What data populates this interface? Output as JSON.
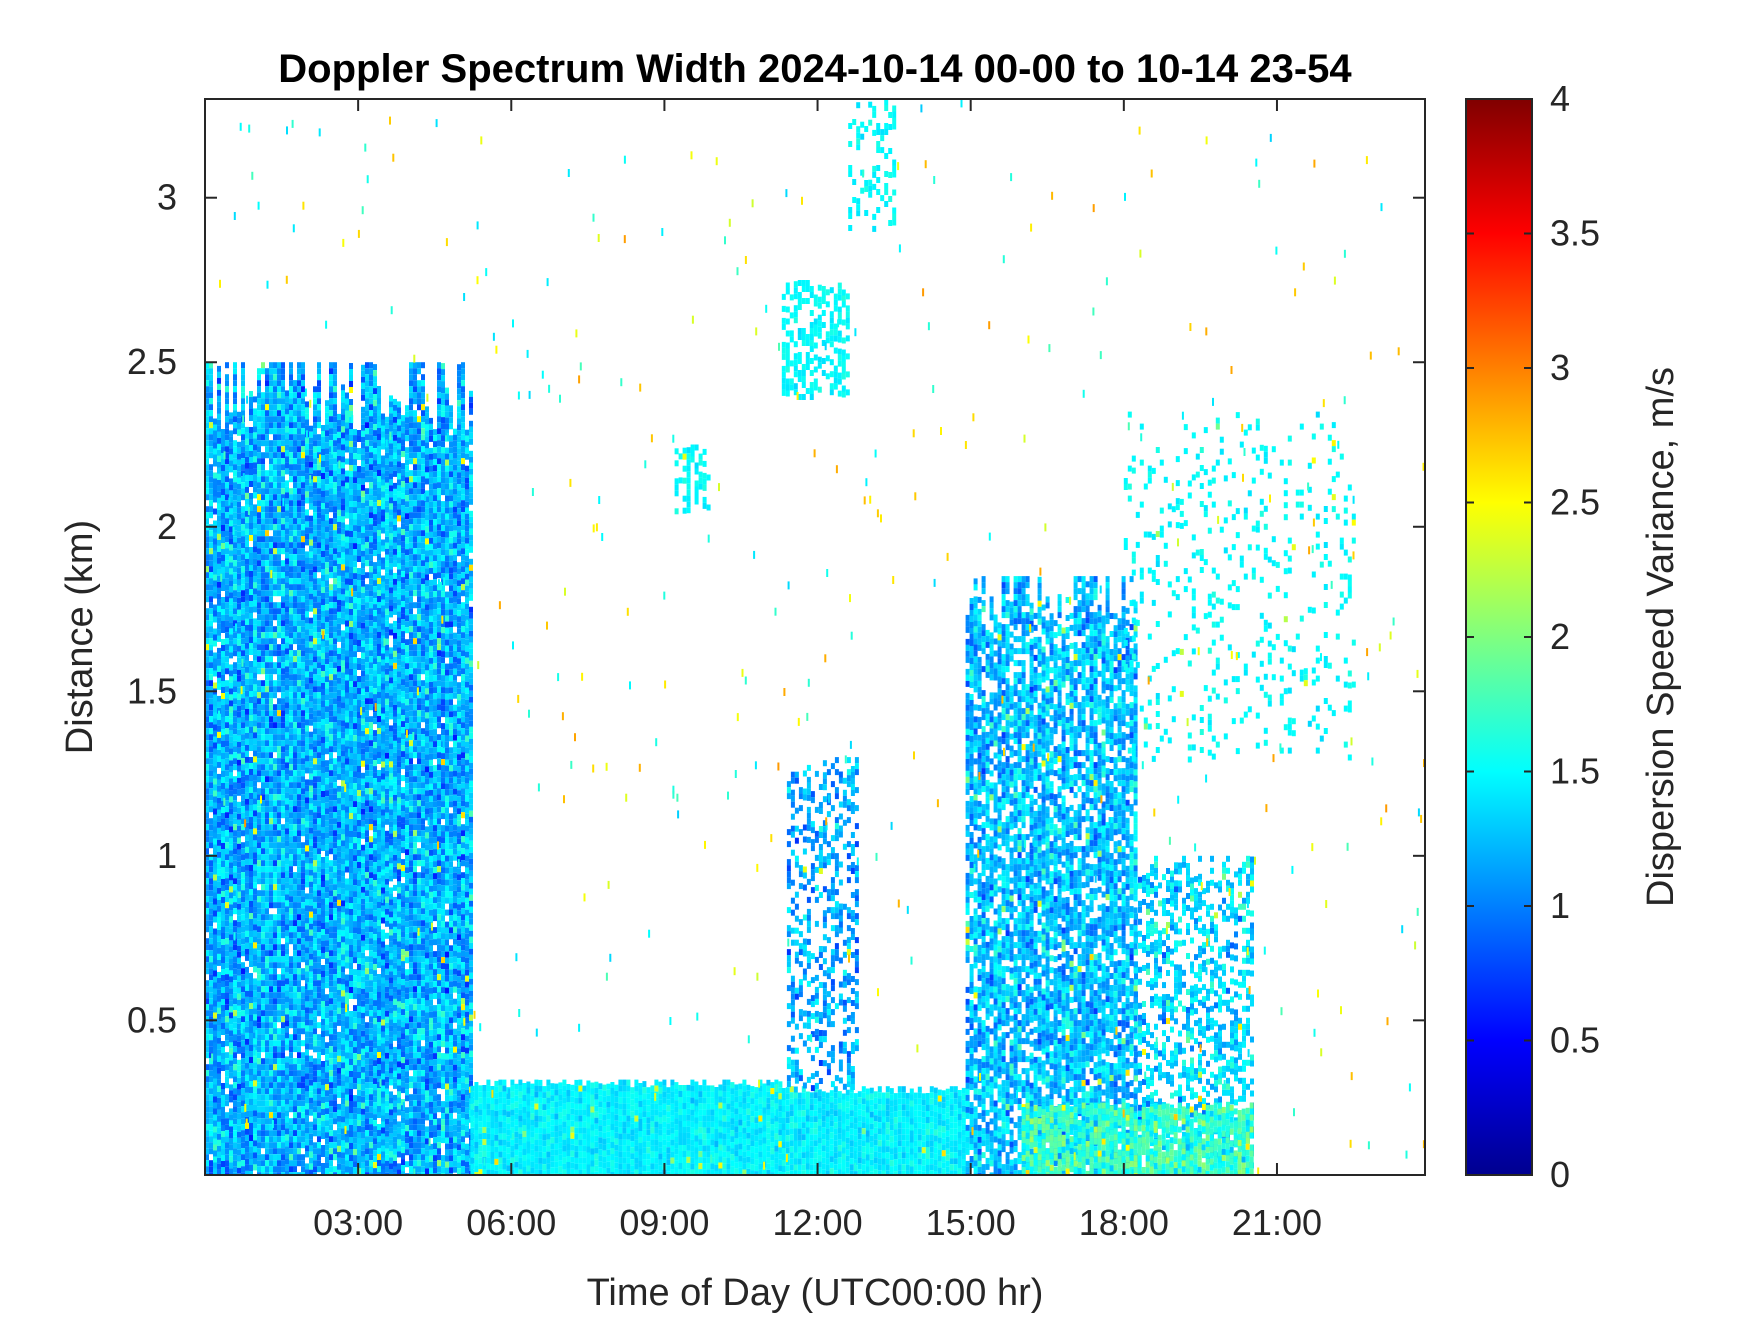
{
  "chart_data": {
    "type": "heatmap",
    "title": "Doppler Spectrum Width 2024-10-14 00-00 to 10-14 23-54",
    "xlabel": "Time of Day (UTC00:00 hr)",
    "ylabel": "Distance (km)",
    "x_ticks": [
      "03:00",
      "06:00",
      "09:00",
      "12:00",
      "15:00",
      "18:00",
      "21:00"
    ],
    "x_tick_hours": [
      3,
      6,
      9,
      12,
      15,
      18,
      21
    ],
    "xlim_hours": [
      0,
      23.9
    ],
    "y_ticks": [
      "0.5",
      "1",
      "1.5",
      "2",
      "2.5",
      "3"
    ],
    "y_tick_values": [
      0.5,
      1,
      1.5,
      2,
      2.5,
      3
    ],
    "ylim_km": [
      0.03,
      3.3
    ],
    "colorbar": {
      "label": "Dispersion Speed Variance, m/s",
      "ticks": [
        "0",
        "0.5",
        "1",
        "1.5",
        "2",
        "2.5",
        "3",
        "3.5",
        "4"
      ],
      "tick_values": [
        0,
        0.5,
        1,
        1.5,
        2,
        2.5,
        3,
        3.5,
        4
      ],
      "range": [
        0,
        4
      ],
      "colormap": "jet"
    },
    "grid": false,
    "regions": [
      {
        "t0": 0.0,
        "t1": 5.2,
        "h0": 0.03,
        "h1": 2.5,
        "center": 1.2,
        "spread": 0.4,
        "density": 0.97
      },
      {
        "t0": 5.2,
        "t1": 11.3,
        "h0": 0.03,
        "h1": 0.32,
        "center": 1.45,
        "spread": 0.15,
        "density": 1.0
      },
      {
        "t0": 11.3,
        "t1": 14.9,
        "h0": 0.03,
        "h1": 0.3,
        "center": 1.45,
        "spread": 0.15,
        "density": 1.0
      },
      {
        "t0": 11.4,
        "t1": 12.8,
        "h0": 0.3,
        "h1": 1.3,
        "center": 1.15,
        "spread": 0.35,
        "density": 0.45
      },
      {
        "t0": 14.9,
        "t1": 18.2,
        "h0": 0.03,
        "h1": 1.85,
        "center": 1.25,
        "spread": 0.35,
        "density": 0.8
      },
      {
        "t0": 18.2,
        "t1": 20.5,
        "h0": 0.03,
        "h1": 1.0,
        "center": 1.35,
        "spread": 0.35,
        "density": 0.5
      },
      {
        "t0": 16.0,
        "t1": 20.5,
        "h0": 0.03,
        "h1": 0.25,
        "center": 1.7,
        "spread": 0.35,
        "density": 0.9
      },
      {
        "t0": 11.3,
        "t1": 12.6,
        "h0": 2.4,
        "h1": 2.75,
        "center": 1.5,
        "spread": 0.1,
        "density": 0.6
      },
      {
        "t0": 12.6,
        "t1": 13.5,
        "h0": 2.9,
        "h1": 3.3,
        "center": 1.5,
        "spread": 0.1,
        "density": 0.35
      },
      {
        "t0": 9.2,
        "t1": 9.9,
        "h0": 2.05,
        "h1": 2.25,
        "center": 1.5,
        "spread": 0.1,
        "density": 0.5
      },
      {
        "t0": 18.0,
        "t1": 22.5,
        "h0": 1.3,
        "h1": 2.35,
        "center": 1.5,
        "spread": 0.1,
        "density": 0.12
      }
    ]
  }
}
